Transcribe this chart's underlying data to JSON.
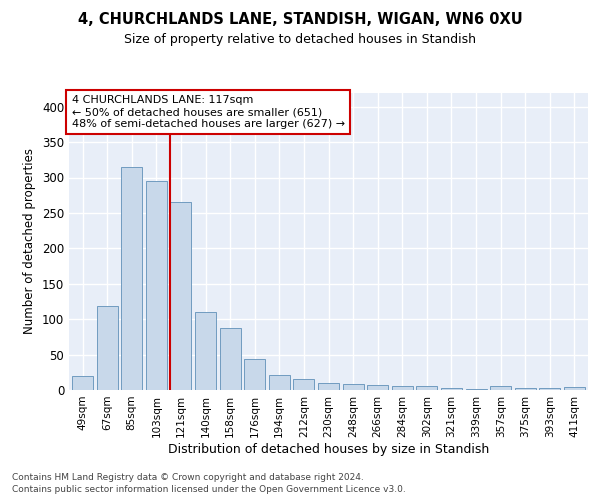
{
  "title": "4, CHURCHLANDS LANE, STANDISH, WIGAN, WN6 0XU",
  "subtitle": "Size of property relative to detached houses in Standish",
  "xlabel": "Distribution of detached houses by size in Standish",
  "ylabel": "Number of detached properties",
  "categories": [
    "49sqm",
    "67sqm",
    "85sqm",
    "103sqm",
    "121sqm",
    "140sqm",
    "158sqm",
    "176sqm",
    "194sqm",
    "212sqm",
    "230sqm",
    "248sqm",
    "266sqm",
    "284sqm",
    "302sqm",
    "321sqm",
    "339sqm",
    "357sqm",
    "375sqm",
    "393sqm",
    "411sqm"
  ],
  "values": [
    20,
    118,
    315,
    295,
    265,
    110,
    87,
    44,
    21,
    16,
    10,
    8,
    7,
    6,
    5,
    3,
    2,
    5,
    3,
    3,
    4
  ],
  "bar_color": "#c8d8ea",
  "bar_edge_color": "#6090b8",
  "marker_line_index": 4,
  "marker_label": "4 CHURCHLANDS LANE: 117sqm",
  "marker_note1": "← 50% of detached houses are smaller (651)",
  "marker_note2": "48% of semi-detached houses are larger (627) →",
  "marker_color": "#cc0000",
  "ylim_max": 420,
  "yticks": [
    0,
    50,
    100,
    150,
    200,
    250,
    300,
    350,
    400
  ],
  "bg_color": "#e8eef8",
  "grid_color": "#ffffff",
  "footer1": "Contains HM Land Registry data © Crown copyright and database right 2024.",
  "footer2": "Contains public sector information licensed under the Open Government Licence v3.0."
}
